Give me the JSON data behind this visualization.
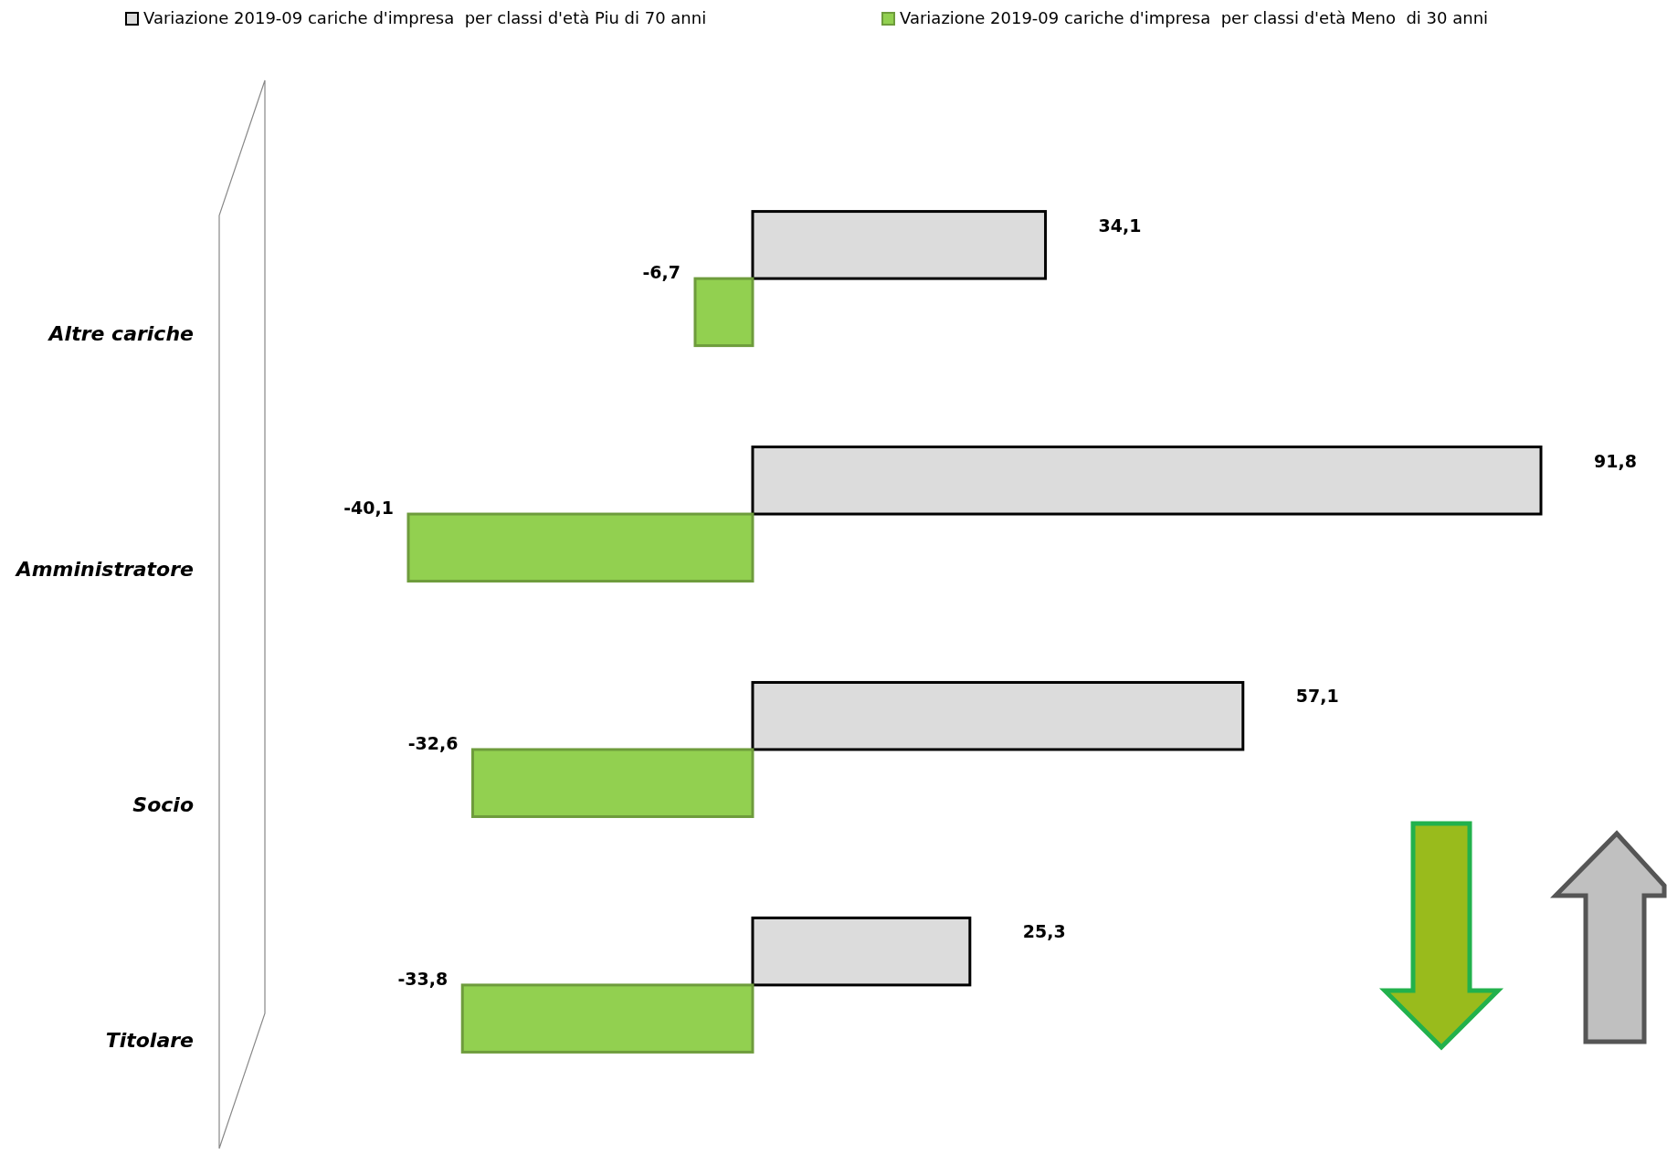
{
  "chart_data": {
    "type": "bar",
    "orientation": "horizontal",
    "legend": "top",
    "categories": [
      "Altre cariche",
      "Amministratore",
      "Socio",
      "Titolare"
    ],
    "series": [
      {
        "name": "Variazione 2019-09 cariche d'impresa  per classi d'età Piu di 70 anni",
        "color": "#dcdcdc",
        "values": [
          34.1,
          91.8,
          57.1,
          25.3
        ],
        "value_labels": [
          "34,1",
          "91,8",
          "57,1",
          "25,3"
        ]
      },
      {
        "name": "Variazione 2019-09 cariche d'impresa  per classi d'età Meno  di 30 anni",
        "color": "#92d050",
        "values": [
          -6.7,
          -40.1,
          -32.6,
          -33.8
        ],
        "value_labels": [
          "-6,7",
          "-40,1",
          "-32,6",
          "-33,8"
        ]
      }
    ]
  }
}
